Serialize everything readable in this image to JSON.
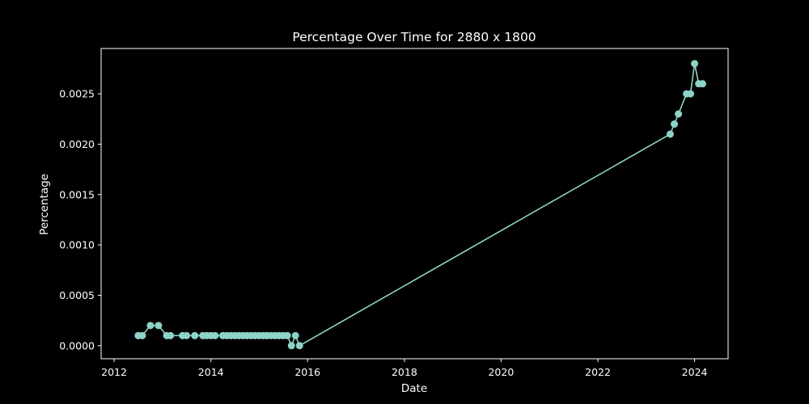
{
  "chart_data": {
    "type": "line",
    "title": "Percentage Over Time for 2880 x 1800",
    "xlabel": "Date",
    "ylabel": "Percentage",
    "xlim": [
      "2011-09-25",
      "2024-09-10"
    ],
    "ylim": [
      -0.00013,
      0.00295
    ],
    "grid": false,
    "x_ticks": [
      "2012",
      "2014",
      "2016",
      "2018",
      "2020",
      "2022",
      "2024"
    ],
    "y_ticks": [
      "0.0000",
      "0.0005",
      "0.0010",
      "0.0015",
      "0.0020",
      "0.0025"
    ],
    "series": [
      {
        "color": "#8dd3c7",
        "marker": "circle",
        "x": [
          "2012-07-01",
          "2012-08-01",
          "2012-10-01",
          "2012-12-01",
          "2013-02-01",
          "2013-03-01",
          "2013-06-01",
          "2013-07-01",
          "2013-09-01",
          "2013-11-01",
          "2013-12-01",
          "2014-01-01",
          "2014-02-01",
          "2014-04-01",
          "2014-05-01",
          "2014-06-01",
          "2014-07-01",
          "2014-08-01",
          "2014-09-01",
          "2014-10-01",
          "2014-11-01",
          "2014-12-01",
          "2015-01-01",
          "2015-02-01",
          "2015-03-01",
          "2015-04-01",
          "2015-05-01",
          "2015-06-01",
          "2015-07-01",
          "2015-08-01",
          "2015-09-01",
          "2015-10-01",
          "2015-11-01",
          "2023-07-01",
          "2023-08-01",
          "2023-09-01",
          "2023-11-01",
          "2023-12-01",
          "2024-01-01",
          "2024-02-01",
          "2024-03-01"
        ],
        "values": [
          0.0001,
          0.0001,
          0.0002,
          0.0002,
          0.0001,
          0.0001,
          0.0001,
          0.0001,
          0.0001,
          0.0001,
          0.0001,
          0.0001,
          0.0001,
          0.0001,
          0.0001,
          0.0001,
          0.0001,
          0.0001,
          0.0001,
          0.0001,
          0.0001,
          0.0001,
          0.0001,
          0.0001,
          0.0001,
          0.0001,
          0.0001,
          0.0001,
          0.0001,
          0.0001,
          0.0,
          0.0001,
          0.0,
          0.0021,
          0.0022,
          0.0023,
          0.0025,
          0.0025,
          0.0028,
          0.0026,
          0.0026
        ]
      }
    ]
  }
}
